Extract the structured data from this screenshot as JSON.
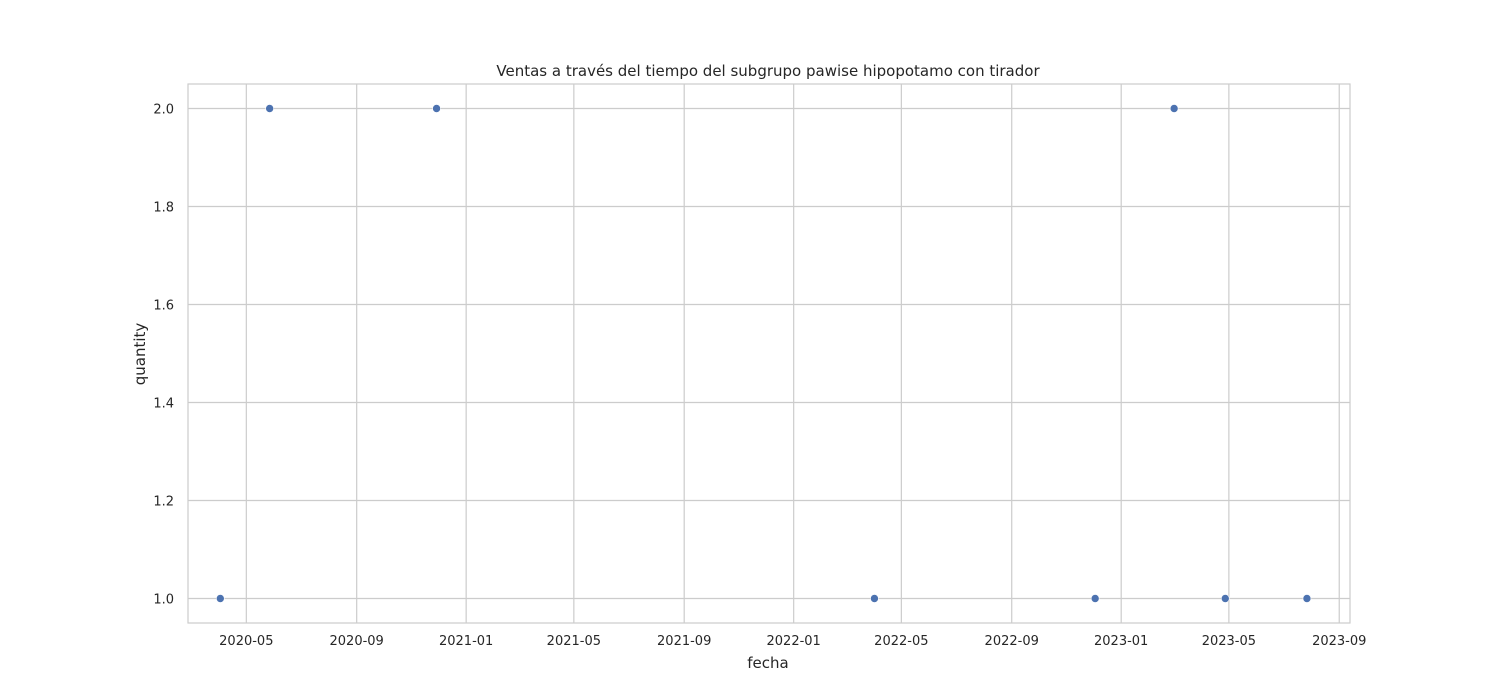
{
  "chart_data": {
    "type": "scatter",
    "title": "Ventas a través del tiempo del subgrupo pawise hipopotamo con tirador",
    "xlabel": "fecha",
    "ylabel": "quantity",
    "x_ticks": [
      "2020-05",
      "2020-09",
      "2021-01",
      "2021-05",
      "2021-09",
      "2022-01",
      "2022-05",
      "2022-09",
      "2023-01",
      "2023-05",
      "2023-09"
    ],
    "y_ticks": [
      "1.0",
      "1.2",
      "1.4",
      "1.6",
      "1.8",
      "2.0"
    ],
    "xlim": [
      "2020-02-26",
      "2023-09-13"
    ],
    "ylim": [
      0.95,
      2.05
    ],
    "grid": true,
    "marker_color": "#4c72b0",
    "series": [
      {
        "x": [
          "2020-04-02",
          "2020-05-27",
          "2020-11-29",
          "2022-04-01",
          "2022-12-03",
          "2023-03-01",
          "2023-04-27",
          "2023-07-27"
        ],
        "y": [
          1,
          2,
          2,
          1,
          1,
          2,
          1,
          1
        ]
      }
    ]
  }
}
